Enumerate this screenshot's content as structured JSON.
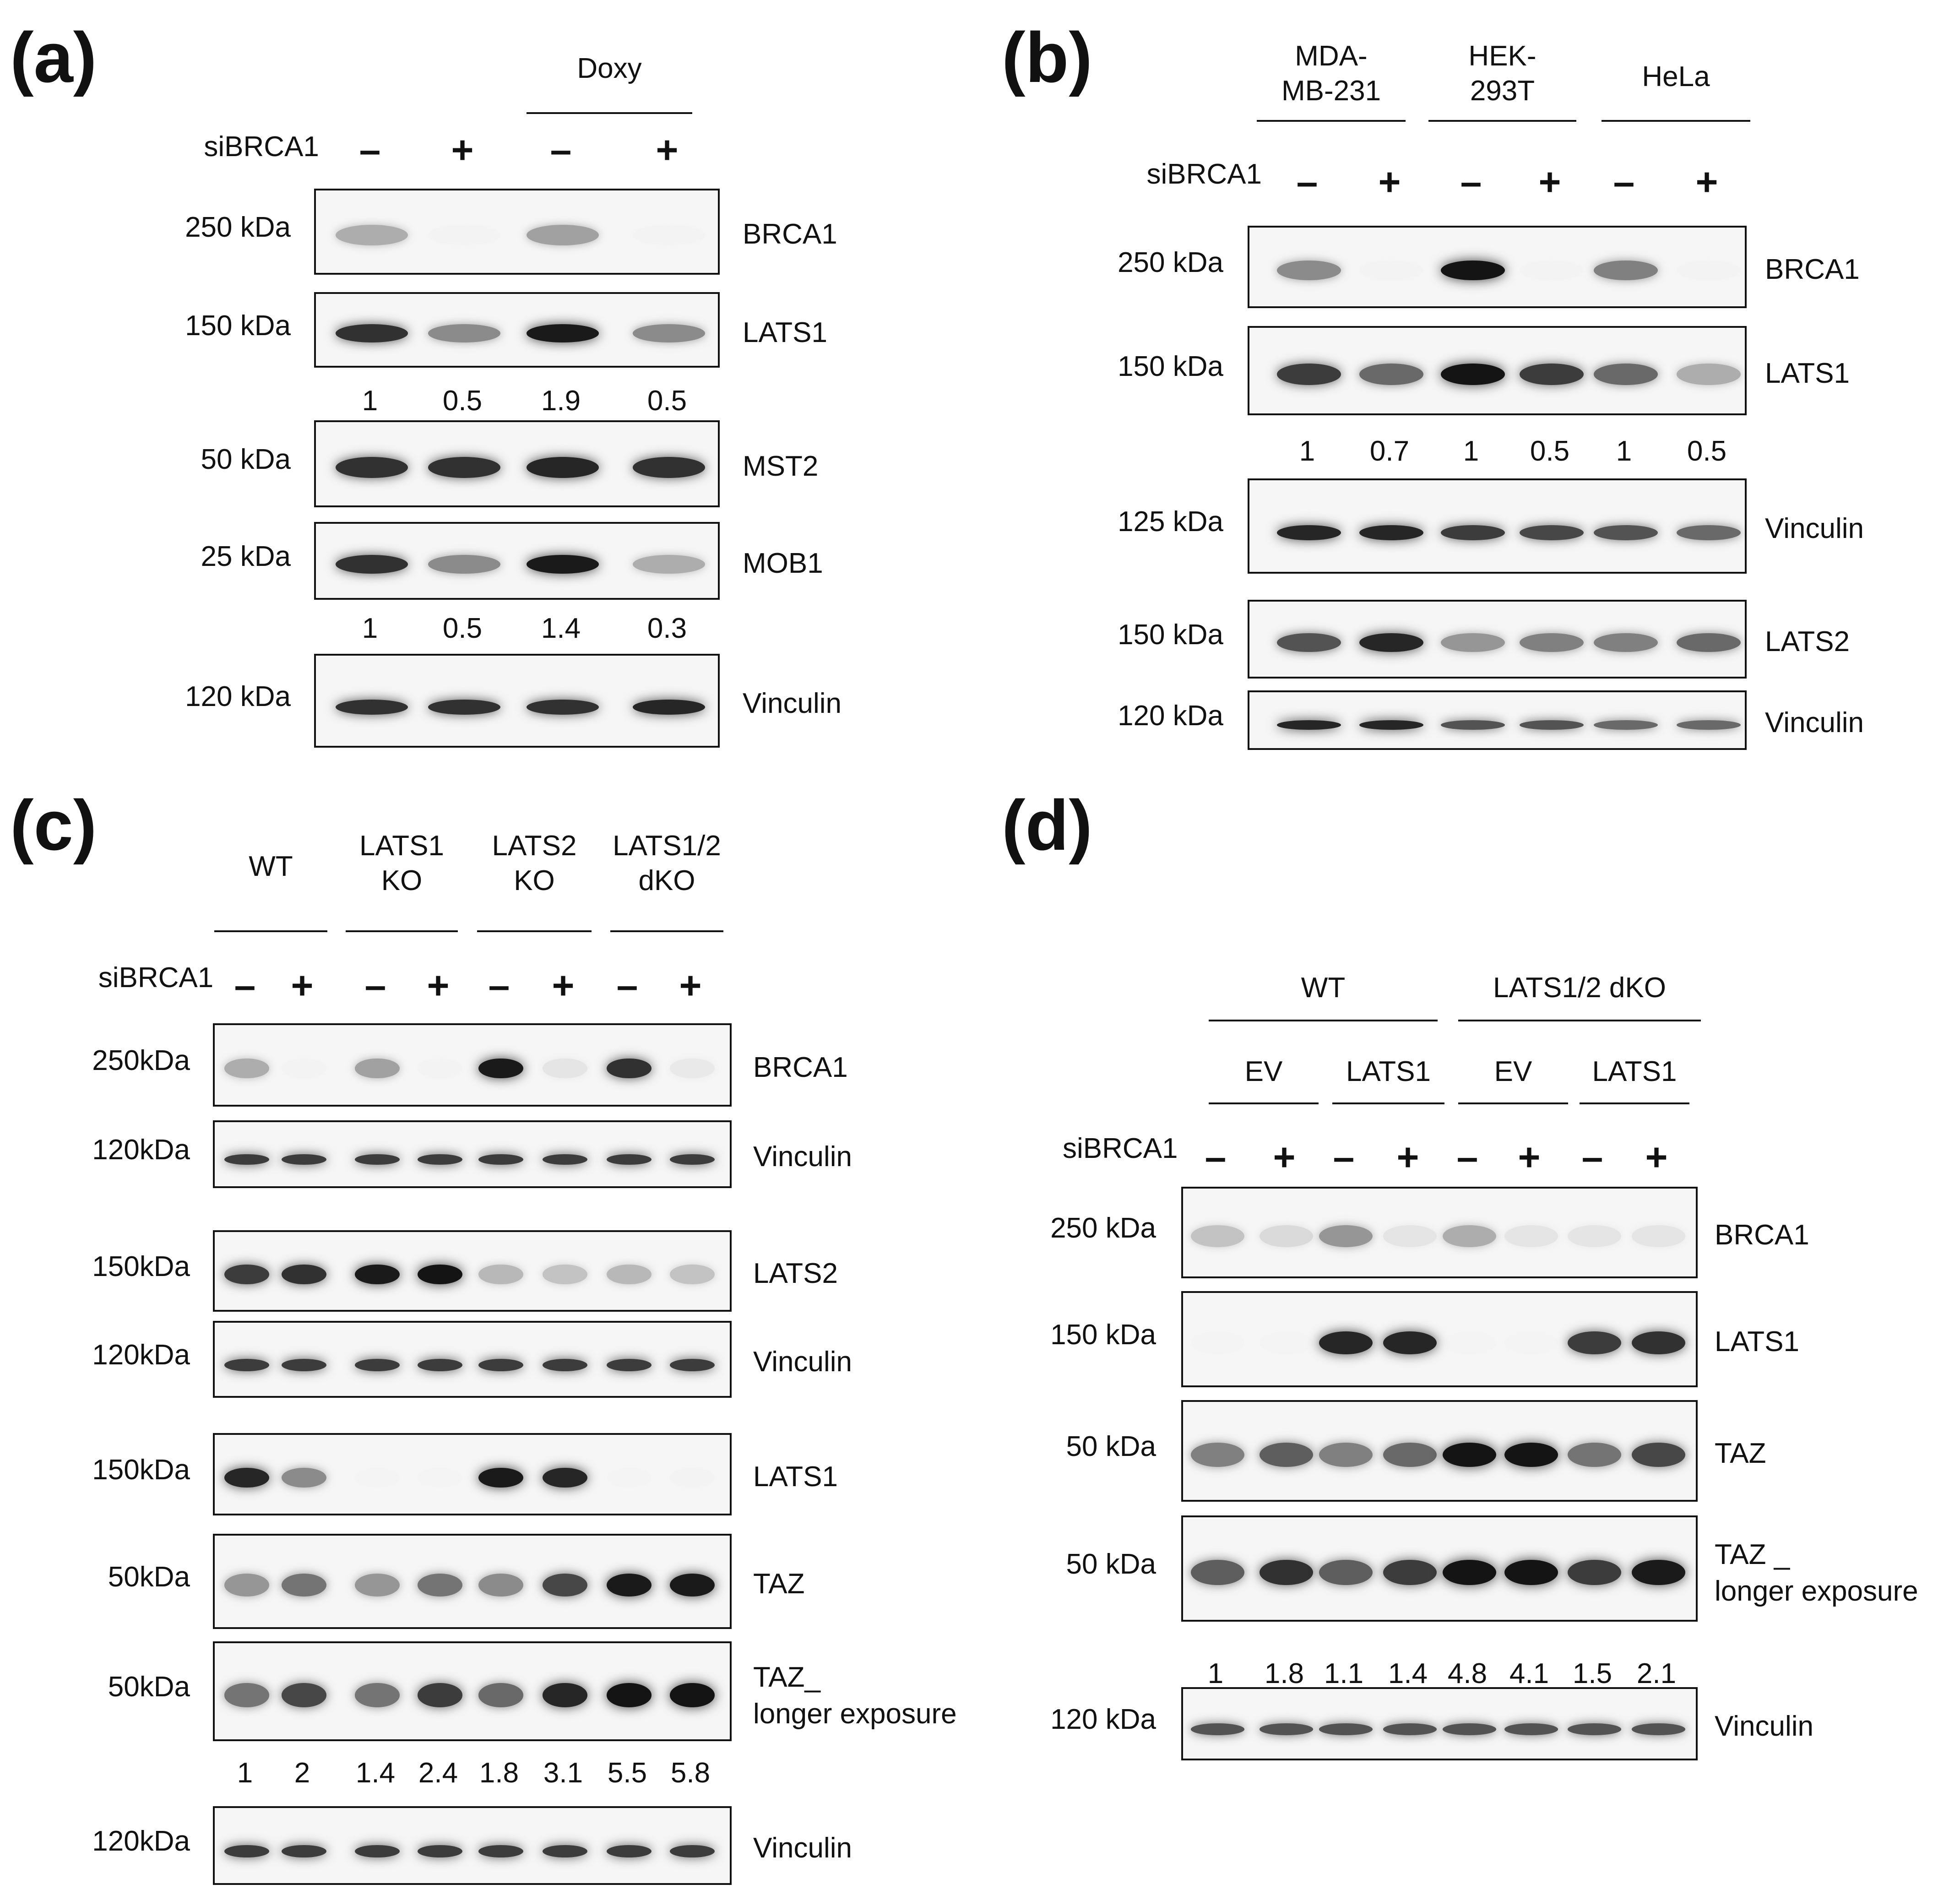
{
  "panels": [
    {
      "label": "(a)",
      "groups": [
        {
          "text": "Doxy"
        }
      ],
      "si_label": "siBRCA1",
      "signs": [
        "–",
        "+",
        "–",
        "+"
      ],
      "blots": [
        {
          "kda": "250 kDa",
          "protein": "BRCA1",
          "bands": [
            0.3,
            0.02,
            0.35,
            0.02
          ]
        },
        {
          "kda": "150 kDa",
          "protein": "LATS1",
          "bands": [
            0.85,
            0.45,
            0.95,
            0.45
          ],
          "quant": [
            "1",
            "0.5",
            "1.9",
            "0.5"
          ]
        },
        {
          "kda": "50 kDa",
          "protein": "MST2",
          "bands": [
            0.85,
            0.85,
            0.9,
            0.85
          ]
        },
        {
          "kda": "25 kDa",
          "protein": "MOB1",
          "bands": [
            0.85,
            0.45,
            0.95,
            0.3
          ],
          "quant": [
            "1",
            "0.5",
            "1.4",
            "0.3"
          ]
        },
        {
          "kda": "120 kDa",
          "protein": "Vinculin",
          "bands": [
            0.85,
            0.85,
            0.85,
            0.9
          ]
        }
      ]
    },
    {
      "label": "(b)",
      "groups": [
        {
          "text": "MDA-\nMB-231"
        },
        {
          "text": "HEK-\n293T"
        },
        {
          "text": "HeLa"
        }
      ],
      "si_label": "siBRCA1",
      "signs": [
        "–",
        "+",
        "–",
        "+",
        "–",
        "+"
      ],
      "blots": [
        {
          "kda": "250 kDa",
          "protein": "BRCA1",
          "bands": [
            0.45,
            0.02,
            0.98,
            0.02,
            0.5,
            0.02
          ]
        },
        {
          "kda": "150 kDa",
          "protein": "LATS1",
          "bands": [
            0.8,
            0.6,
            0.98,
            0.8,
            0.6,
            0.3
          ],
          "quant": [
            "1",
            "0.7",
            "1",
            "0.5",
            "1",
            "0.5"
          ]
        },
        {
          "kda": "125 kDa",
          "protein": "Vinculin",
          "bands": [
            0.9,
            0.9,
            0.8,
            0.75,
            0.7,
            0.6
          ]
        },
        {
          "kda": "150 kDa",
          "protein": "LATS2",
          "bands": [
            0.7,
            0.9,
            0.4,
            0.5,
            0.5,
            0.6
          ]
        },
        {
          "kda": "120 kDa",
          "protein": "Vinculin",
          "bands": [
            0.9,
            0.9,
            0.7,
            0.7,
            0.6,
            0.6
          ]
        }
      ]
    },
    {
      "label": "(c)",
      "groups": [
        {
          "text": "WT"
        },
        {
          "text": "LATS1\nKO"
        },
        {
          "text": "LATS2\nKO"
        },
        {
          "text": "LATS1/2\ndKO"
        }
      ],
      "si_label": "siBRCA1",
      "signs": [
        "–",
        "+",
        "–",
        "+",
        "–",
        "+",
        "–",
        "+"
      ],
      "blots": [
        {
          "kda": "250kDa",
          "protein": "BRCA1",
          "bands": [
            0.3,
            0.02,
            0.35,
            0.02,
            0.95,
            0.05,
            0.85,
            0.03
          ]
        },
        {
          "kda": "120kDa",
          "protein": "Vinculin",
          "bands": [
            0.8,
            0.8,
            0.8,
            0.8,
            0.8,
            0.8,
            0.8,
            0.8
          ]
        },
        {
          "kda": "150kDa",
          "protein": "LATS2",
          "bands": [
            0.8,
            0.85,
            0.95,
            0.98,
            0.25,
            0.2,
            0.25,
            0.2
          ]
        },
        {
          "kda": "120kDa",
          "protein": "Vinculin",
          "bands": [
            0.8,
            0.8,
            0.8,
            0.8,
            0.8,
            0.8,
            0.8,
            0.8
          ]
        },
        {
          "kda": "150kDa",
          "protein": "LATS1",
          "bands": [
            0.9,
            0.45,
            0.0,
            0.0,
            0.95,
            0.9,
            0.0,
            0.02
          ]
        },
        {
          "kda": "50kDa",
          "protein": "TAZ",
          "bands": [
            0.4,
            0.55,
            0.4,
            0.55,
            0.45,
            0.75,
            0.95,
            0.95
          ]
        },
        {
          "kda": "50kDa",
          "protein": "TAZ_\nlonger exposure",
          "bands": [
            0.55,
            0.75,
            0.55,
            0.8,
            0.6,
            0.9,
            0.98,
            0.98
          ],
          "quant": [
            "1",
            "2",
            "1.4",
            "2.4",
            "1.8",
            "3.1",
            "5.5",
            "5.8"
          ]
        },
        {
          "kda": "120kDa",
          "protein": "Vinculin",
          "bands": [
            0.8,
            0.8,
            0.8,
            0.8,
            0.8,
            0.8,
            0.8,
            0.8
          ]
        }
      ]
    },
    {
      "label": "(d)",
      "groups": [
        {
          "text": "WT"
        },
        {
          "text": "LATS1/2 dKO"
        }
      ],
      "subgroups": [
        {
          "text": "EV"
        },
        {
          "text": "LATS1"
        },
        {
          "text": "EV"
        },
        {
          "text": "LATS1"
        }
      ],
      "si_label": "siBRCA1",
      "signs": [
        "–",
        "+",
        "–",
        "+",
        "–",
        "+",
        "–",
        "+"
      ],
      "blots": [
        {
          "kda": "250 kDa",
          "protein": "BRCA1",
          "bands": [
            0.2,
            0.1,
            0.4,
            0.05,
            0.3,
            0.05,
            0.05,
            0.05
          ]
        },
        {
          "kda": "150 kDa",
          "protein": "LATS1",
          "bands": [
            0.0,
            0.0,
            0.9,
            0.9,
            0.0,
            0.0,
            0.8,
            0.85
          ]
        },
        {
          "kda": "50 kDa",
          "protein": "TAZ",
          "bands": [
            0.5,
            0.65,
            0.5,
            0.6,
            0.98,
            0.98,
            0.55,
            0.75
          ]
        },
        {
          "kda": "50 kDa",
          "protein": "TAZ _\nlonger exposure",
          "bands": [
            0.65,
            0.85,
            0.65,
            0.8,
            0.98,
            0.98,
            0.8,
            0.95
          ],
          "quant": [
            "1",
            "1.8",
            "1.1",
            "1.4",
            "4.8",
            "4.1",
            "1.5",
            "2.1"
          ]
        },
        {
          "kda": "120 kDa",
          "protein": "Vinculin",
          "bands": [
            0.7,
            0.7,
            0.7,
            0.7,
            0.7,
            0.7,
            0.7,
            0.7
          ]
        }
      ]
    }
  ]
}
